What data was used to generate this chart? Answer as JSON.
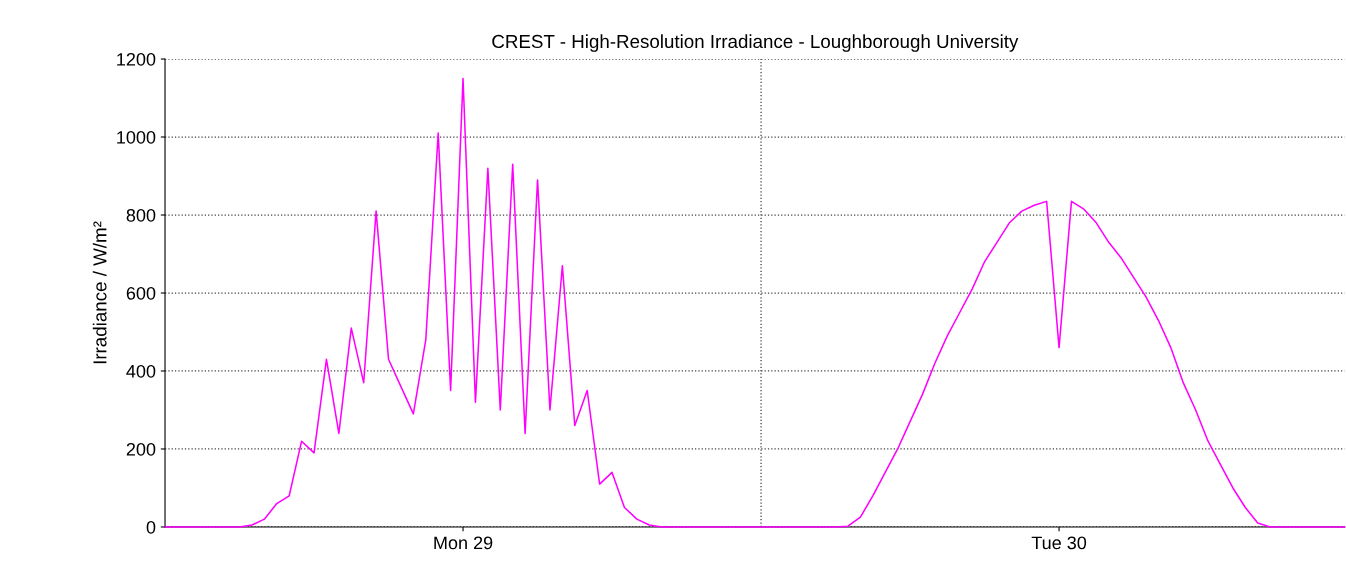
{
  "chart_data": {
    "type": "line",
    "title": "CREST - High-Resolution Irradiance - Loughborough University",
    "ylabel": "Irradiance / W/m²",
    "categories": [
      null,
      null,
      null,
      null,
      null,
      null,
      null,
      null,
      null,
      null,
      null,
      null,
      null,
      null,
      null,
      null,
      null,
      null,
      null,
      null,
      null,
      null,
      null,
      null,
      "Mon 29",
      null,
      null,
      null,
      null,
      null,
      null,
      null,
      null,
      null,
      null,
      null,
      null,
      null,
      null,
      null,
      null,
      null,
      null,
      null,
      null,
      null,
      null,
      null,
      null,
      null,
      null,
      null,
      null,
      null,
      null,
      null,
      null,
      null,
      null,
      null,
      null,
      null,
      null,
      null,
      null,
      null,
      null,
      null,
      null,
      null,
      null,
      null,
      "Tue 30",
      null,
      null,
      null,
      null,
      null,
      null,
      null,
      null,
      null,
      null,
      null,
      null,
      null,
      null,
      null,
      null,
      null,
      null,
      null,
      null,
      null,
      null,
      null
    ],
    "series": [
      {
        "color": "#ff00ff",
        "values": [
          0,
          0,
          0,
          0,
          0,
          0,
          0,
          5,
          20,
          60,
          80,
          220,
          190,
          430,
          240,
          510,
          370,
          810,
          430,
          360,
          290,
          480,
          1010,
          350,
          1150,
          320,
          920,
          300,
          930,
          240,
          890,
          300,
          670,
          260,
          350,
          110,
          140,
          50,
          20,
          5,
          0,
          0,
          0,
          0,
          0,
          0,
          0,
          0,
          0,
          0,
          0,
          0,
          0,
          0,
          0,
          2,
          25,
          80,
          140,
          200,
          270,
          340,
          420,
          490,
          550,
          610,
          680,
          730,
          780,
          810,
          825,
          835,
          460,
          835,
          815,
          780,
          730,
          690,
          640,
          590,
          530,
          460,
          370,
          300,
          220,
          160,
          100,
          50,
          10,
          0,
          0,
          0,
          0,
          0,
          0,
          0
        ]
      }
    ],
    "ylim": [
      0,
      1200
    ],
    "yticks": [
      0,
      200,
      400,
      600,
      800,
      1000,
      1200
    ],
    "grid": true,
    "line_style": "solid"
  }
}
